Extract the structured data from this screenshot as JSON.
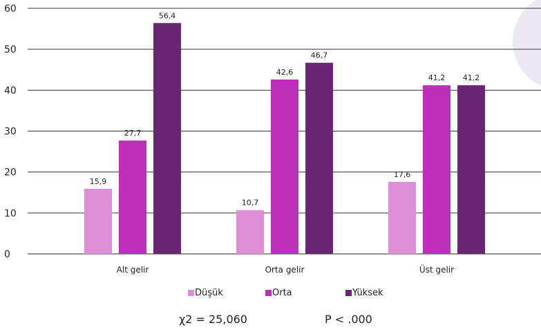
{
  "chart_data": {
    "type": "bar",
    "categories": [
      "Alt gelir",
      "Orta gelir",
      "Üst gelir"
    ],
    "series": [
      {
        "name": "Düşük",
        "values": [
          15.9,
          10.7,
          17.6
        ],
        "labels": [
          "15,9",
          "10,7",
          "17,6"
        ],
        "color": "#dd8ed6"
      },
      {
        "name": "Orta",
        "values": [
          27.7,
          42.6,
          41.2
        ],
        "labels": [
          "27,7",
          "42,6",
          "41,2"
        ],
        "color": "#bd2fb9"
      },
      {
        "name": "Yüksek",
        "values": [
          56.4,
          46.7,
          41.2
        ],
        "labels": [
          "56,4",
          "46,7",
          "41,2"
        ],
        "color": "#6b2575"
      }
    ],
    "yticks": [
      "0",
      "10",
      "20",
      "30",
      "40",
      "50",
      "60"
    ],
    "ylim": [
      0,
      60
    ],
    "grid": true,
    "legend_position": "bottom"
  },
  "stats": {
    "chi_square": "χ2 = 25,060",
    "p_value": "P < .000"
  }
}
